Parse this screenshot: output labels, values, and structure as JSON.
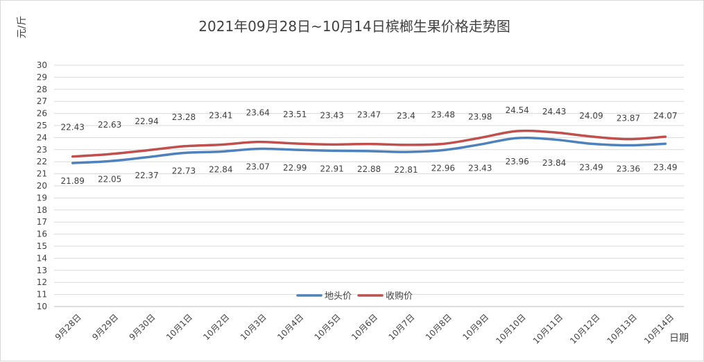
{
  "chart_data": {
    "type": "line",
    "title": "2021年09月28日~10月14日槟榔生果价格走势图",
    "ylabel": "元/斤",
    "xlabel": "日期",
    "ylim": [
      10,
      30
    ],
    "ystep": 1,
    "grid": true,
    "legend_position": "bottom-center",
    "categories": [
      "9月28日",
      "9月29日",
      "9月30日",
      "10月1日",
      "10月2日",
      "10月3日",
      "10月4日",
      "10月5日",
      "10月6日",
      "10月7日",
      "10月8日",
      "10月9日",
      "10月10日",
      "10月11日",
      "10月12日",
      "10月13日",
      "10月14日"
    ],
    "series": [
      {
        "name": "地头价",
        "color": "#4f81bd",
        "values": [
          21.89,
          22.05,
          22.37,
          22.73,
          22.84,
          23.07,
          22.99,
          22.91,
          22.88,
          22.81,
          22.96,
          23.43,
          23.96,
          23.84,
          23.49,
          23.36,
          23.49
        ],
        "labels": [
          "21.89",
          "22.05",
          "22.37",
          "22.73",
          "22.84",
          "23.07",
          "22.99",
          "22.91",
          "22.88",
          "22.81",
          "22.96",
          "23.43",
          "23.96",
          "23.84",
          "23.49",
          "23.36",
          "23.49"
        ]
      },
      {
        "name": "收购价",
        "color": "#c0504d",
        "values": [
          22.43,
          22.63,
          22.94,
          23.28,
          23.41,
          23.64,
          23.51,
          23.43,
          23.47,
          23.4,
          23.48,
          23.98,
          24.54,
          24.43,
          24.09,
          23.87,
          24.07
        ],
        "labels": [
          "22.43",
          "22.63",
          "22.94",
          "23.28",
          "23.41",
          "23.64",
          "23.51",
          "23.43",
          "23.47",
          "23.4",
          "23.48",
          "23.98",
          "24.54",
          "24.43",
          "24.09",
          "23.87",
          "24.07"
        ]
      }
    ]
  }
}
